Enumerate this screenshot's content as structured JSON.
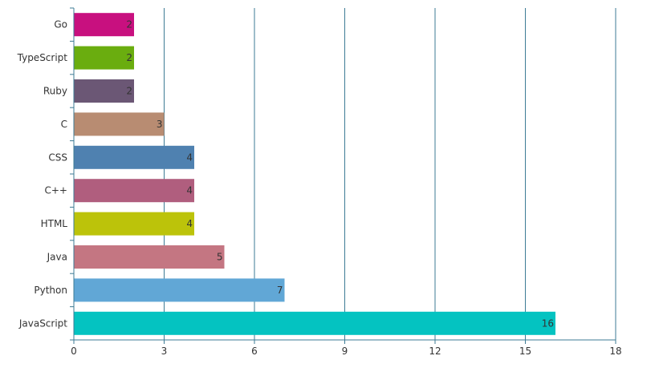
{
  "chart_data": {
    "type": "bar",
    "orientation": "horizontal",
    "title": "",
    "xlabel": "",
    "ylabel": "",
    "categories": [
      "Go",
      "TypeScript",
      "Ruby",
      "C",
      "CSS",
      "C++",
      "HTML",
      "Java",
      "Python",
      "JavaScript"
    ],
    "values": [
      2,
      2,
      2,
      3,
      4,
      4,
      4,
      5,
      7,
      16
    ],
    "colors": [
      "#c8107f",
      "#6aad0f",
      "#6b5775",
      "#b88c72",
      "#4f81b0",
      "#b05e7e",
      "#bcc30a",
      "#c47682",
      "#61a7d6",
      "#04c3c1"
    ],
    "xlim": [
      0,
      18
    ],
    "xticks": [
      0,
      3,
      6,
      9,
      12,
      15,
      18
    ],
    "grid": true,
    "grid_color": "#3d7b95",
    "data_labels": true,
    "legend": "none"
  }
}
